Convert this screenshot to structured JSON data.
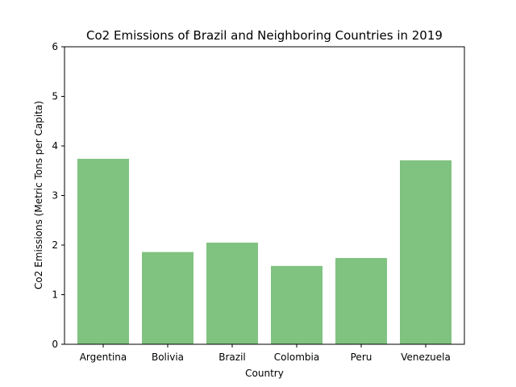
{
  "chart_data": {
    "type": "bar",
    "title": "Co2 Emissions of Brazil and Neighboring Countries in 2019",
    "xlabel": "Country",
    "ylabel": "Co2 Emissions (Metric Tons per Capita)",
    "categories": [
      "Argentina",
      "Bolivia",
      "Brazil",
      "Colombia",
      "Peru",
      "Venezuela"
    ],
    "values": [
      3.74,
      1.86,
      2.05,
      1.58,
      1.74,
      3.71
    ],
    "ylim": [
      0,
      6
    ],
    "yticks": [
      "0",
      "1",
      "2",
      "3",
      "4",
      "5",
      "6"
    ],
    "bar_color": "#80c280",
    "grid": false,
    "legend": "none"
  }
}
